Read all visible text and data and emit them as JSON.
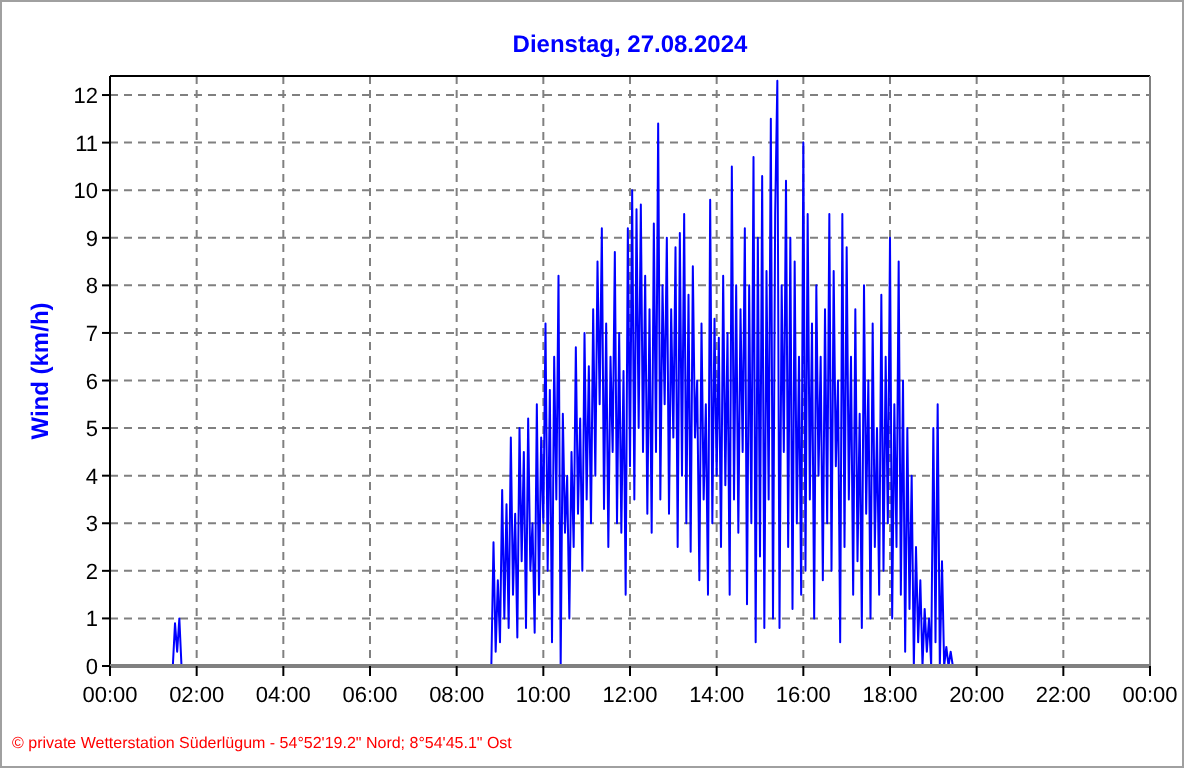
{
  "chart_data": {
    "type": "line",
    "title": "Dienstag, 27.08.2024",
    "ylabel": "Wind  (km/h)",
    "annotations": [
      "© private Wetterstation Süderlügum - 54°52'19.2\" Nord; 8°54'45.1\" Ost"
    ],
    "series": [
      {
        "color": "#0000ff",
        "x": [
          0,
          1.45,
          1.5,
          1.55,
          1.6,
          1.65,
          8.8,
          8.85,
          8.9,
          8.95,
          9.0,
          9.05,
          9.1,
          9.15,
          9.2,
          9.25,
          9.3,
          9.35,
          9.4,
          9.45,
          9.5,
          9.55,
          9.6,
          9.65,
          9.7,
          9.75,
          9.8,
          9.85,
          9.9,
          9.95,
          10.0,
          10.05,
          10.1,
          10.15,
          10.2,
          10.25,
          10.3,
          10.35,
          10.4,
          10.45,
          10.5,
          10.55,
          10.6,
          10.65,
          10.7,
          10.75,
          10.8,
          10.85,
          10.9,
          10.95,
          11.0,
          11.05,
          11.1,
          11.15,
          11.2,
          11.25,
          11.3,
          11.35,
          11.4,
          11.45,
          11.5,
          11.55,
          11.6,
          11.65,
          11.7,
          11.75,
          11.8,
          11.85,
          11.9,
          11.95,
          12.0,
          12.05,
          12.1,
          12.15,
          12.2,
          12.25,
          12.3,
          12.35,
          12.4,
          12.45,
          12.5,
          12.55,
          12.6,
          12.65,
          12.7,
          12.75,
          12.8,
          12.85,
          12.9,
          12.95,
          13.0,
          13.05,
          13.1,
          13.15,
          13.2,
          13.25,
          13.3,
          13.35,
          13.4,
          13.45,
          13.5,
          13.55,
          13.6,
          13.65,
          13.7,
          13.75,
          13.8,
          13.85,
          13.9,
          13.95,
          14.0,
          14.05,
          14.1,
          14.15,
          14.2,
          14.25,
          14.3,
          14.35,
          14.4,
          14.45,
          14.5,
          14.55,
          14.6,
          14.65,
          14.7,
          14.75,
          14.8,
          14.85,
          14.9,
          14.95,
          15.0,
          15.05,
          15.1,
          15.15,
          15.2,
          15.25,
          15.3,
          15.35,
          15.4,
          15.45,
          15.5,
          15.55,
          15.6,
          15.65,
          15.7,
          15.75,
          15.8,
          15.85,
          15.9,
          15.95,
          16.0,
          16.05,
          16.1,
          16.15,
          16.2,
          16.25,
          16.3,
          16.35,
          16.4,
          16.45,
          16.5,
          16.55,
          16.6,
          16.65,
          16.7,
          16.75,
          16.8,
          16.85,
          16.9,
          16.95,
          17.0,
          17.05,
          17.1,
          17.15,
          17.2,
          17.25,
          17.3,
          17.35,
          17.4,
          17.45,
          17.5,
          17.55,
          17.6,
          17.65,
          17.7,
          17.75,
          17.8,
          17.85,
          17.9,
          17.95,
          18.0,
          18.05,
          18.1,
          18.15,
          18.2,
          18.25,
          18.3,
          18.35,
          18.4,
          18.45,
          18.5,
          18.55,
          18.6,
          18.65,
          18.7,
          18.75,
          18.8,
          18.85,
          18.9,
          18.95,
          19.0,
          19.05,
          19.1,
          19.15,
          19.2,
          19.25,
          19.3,
          19.35,
          19.4,
          19.45
        ],
        "values": [
          0,
          0,
          0.9,
          0.3,
          1.0,
          0,
          0,
          2.6,
          0.3,
          1.8,
          0.5,
          3.7,
          1.0,
          3.4,
          0.8,
          4.8,
          1.5,
          3.2,
          0.6,
          5.0,
          2.2,
          4.5,
          0.8,
          5.2,
          2.0,
          3.0,
          0.7,
          5.5,
          1.5,
          4.8,
          3.0,
          7.2,
          2.0,
          5.8,
          0.5,
          6.5,
          3.5,
          8.2,
          0,
          5.3,
          2.8,
          4.0,
          1.0,
          4.5,
          2.5,
          6.7,
          3.2,
          5.2,
          2.0,
          7.0,
          3.5,
          6.3,
          3.0,
          7.5,
          4.0,
          8.5,
          5.5,
          9.2,
          3.3,
          7.2,
          2.5,
          6.5,
          4.5,
          8.7,
          3.0,
          7.0,
          2.8,
          6.2,
          1.5,
          9.2,
          4.2,
          10.0,
          3.5,
          9.6,
          5.0,
          9.7,
          4.5,
          8.2,
          3.2,
          7.5,
          2.8,
          9.3,
          4.5,
          11.4,
          3.5,
          8.0,
          5.5,
          9.0,
          3.2,
          7.5,
          4.8,
          8.8,
          2.5,
          9.1,
          4.0,
          9.5,
          3.0,
          7.8,
          2.4,
          8.4,
          4.8,
          6.0,
          1.8,
          7.2,
          3.5,
          5.5,
          1.5,
          9.8,
          3.0,
          7.3,
          4.0,
          6.9,
          2.5,
          8.2,
          3.8,
          7.0,
          1.5,
          10.5,
          3.5,
          8.0,
          2.8,
          7.5,
          4.5,
          9.2,
          1.3,
          8.0,
          3.0,
          10.7,
          0.5,
          9.0,
          2.3,
          10.3,
          0.8,
          8.3,
          3.5,
          11.5,
          1.0,
          9.5,
          12.3,
          0.8,
          8.0,
          4.5,
          10.2,
          2.5,
          9.0,
          1.2,
          8.5,
          3.0,
          6.5,
          1.5,
          11.0,
          2.0,
          9.5,
          3.5,
          7.2,
          1.0,
          8.0,
          4.0,
          6.5,
          1.8,
          7.5,
          3.0,
          9.5,
          2.0,
          8.3,
          4.2,
          6.0,
          0.5,
          9.5,
          2.5,
          8.8,
          3.5,
          6.5,
          1.5,
          7.5,
          2.2,
          5.3,
          0.8,
          8.0,
          3.2,
          6.0,
          1.0,
          7.2,
          2.5,
          5.0,
          1.5,
          7.8,
          2.0,
          6.5,
          3.0,
          9.0,
          1.0,
          5.5,
          2.5,
          8.5,
          1.5,
          6.0,
          0.3,
          5.0,
          1.2,
          4.0,
          0,
          2.5,
          0.5,
          1.8,
          0,
          1.2,
          0.3,
          1.0,
          0,
          5.0,
          0.5,
          5.5,
          0,
          2.2,
          0,
          0.4,
          0,
          0.3,
          0
        ]
      }
    ],
    "xlim": [
      0,
      24
    ],
    "xticks": [
      {
        "value": 0,
        "label": "00:00"
      },
      {
        "value": 2,
        "label": "02:00"
      },
      {
        "value": 4,
        "label": "04:00"
      },
      {
        "value": 6,
        "label": "06:00"
      },
      {
        "value": 8,
        "label": "08:00"
      },
      {
        "value": 10,
        "label": "10:00"
      },
      {
        "value": 12,
        "label": "12:00"
      },
      {
        "value": 14,
        "label": "14:00"
      },
      {
        "value": 16,
        "label": "16:00"
      },
      {
        "value": 18,
        "label": "18:00"
      },
      {
        "value": 20,
        "label": "20:00"
      },
      {
        "value": 22,
        "label": "22:00"
      },
      {
        "value": 24,
        "label": "00:00"
      }
    ],
    "ylim": [
      0,
      12.4
    ],
    "yticks": [
      0,
      1,
      2,
      3,
      4,
      5,
      6,
      7,
      8,
      9,
      10,
      11,
      12
    ],
    "grid": true,
    "line_style": "solid"
  }
}
